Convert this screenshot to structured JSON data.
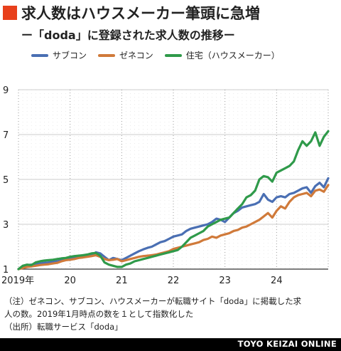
{
  "header": {
    "title": "求人数はハウスメーカー筆頭に急増",
    "subtitle": "ー「doda」に登録された求人数の推移ー"
  },
  "colors": {
    "accent": "#e8401c",
    "subcon": "#4a6fb3",
    "genecon": "#d07a3a",
    "housing": "#2f9a4a",
    "grid": "#cccccc"
  },
  "notes": {
    "line1": "（注）ゼネコン、サブコン、ハウスメーカーが転職サイト「doda」に掲載した求",
    "line2": "人の数。2019年1月時点の数を１として指数化した",
    "line3": "（出所）転職サービス「doda」"
  },
  "footer": {
    "brand": "TOYO KEIZAI ONLINE"
  },
  "chart_data": {
    "type": "line",
    "x_start": "2019-01",
    "x_tick_labels": [
      "2019年",
      "20",
      "21",
      "22",
      "23",
      "24"
    ],
    "y_ticks": [
      "1",
      "3",
      "5",
      "7",
      "9"
    ],
    "ylim": [
      1,
      9
    ],
    "legend_position": "top",
    "grid": "horizontal",
    "series": [
      {
        "name": "サブコン",
        "color": "#4a6fb3",
        "values": [
          1.0,
          1.1,
          1.18,
          1.2,
          1.22,
          1.25,
          1.28,
          1.3,
          1.33,
          1.35,
          1.4,
          1.45,
          1.48,
          1.5,
          1.52,
          1.55,
          1.58,
          1.62,
          1.75,
          1.7,
          1.55,
          1.4,
          1.5,
          1.45,
          1.4,
          1.5,
          1.6,
          1.7,
          1.8,
          1.88,
          1.95,
          2.0,
          2.1,
          2.2,
          2.25,
          2.35,
          2.45,
          2.5,
          2.55,
          2.7,
          2.8,
          2.85,
          2.9,
          2.95,
          3.0,
          3.1,
          3.25,
          3.2,
          3.1,
          3.3,
          3.5,
          3.6,
          3.75,
          3.8,
          3.85,
          3.9,
          4.0,
          4.35,
          4.1,
          4.0,
          4.2,
          4.25,
          4.2,
          4.35,
          4.4,
          4.5,
          4.6,
          4.65,
          4.4,
          4.7,
          4.85,
          4.65,
          5.05
        ]
      },
      {
        "name": "ゼネコン",
        "color": "#d07a3a",
        "values": [
          1.0,
          1.05,
          1.1,
          1.12,
          1.15,
          1.18,
          1.2,
          1.22,
          1.25,
          1.28,
          1.35,
          1.4,
          1.42,
          1.45,
          1.5,
          1.52,
          1.55,
          1.58,
          1.62,
          1.55,
          1.45,
          1.4,
          1.42,
          1.45,
          1.35,
          1.4,
          1.45,
          1.5,
          1.55,
          1.58,
          1.6,
          1.62,
          1.65,
          1.7,
          1.75,
          1.8,
          1.9,
          1.95,
          2.0,
          2.05,
          2.1,
          2.15,
          2.2,
          2.3,
          2.35,
          2.45,
          2.4,
          2.5,
          2.55,
          2.6,
          2.7,
          2.75,
          2.85,
          2.9,
          3.0,
          3.1,
          3.2,
          3.35,
          3.5,
          3.3,
          3.6,
          3.8,
          3.7,
          4.0,
          4.2,
          4.3,
          4.35,
          4.4,
          4.25,
          4.5,
          4.55,
          4.45,
          4.75
        ]
      },
      {
        "name": "住宅（ハウスメーカー）",
        "color": "#2f9a4a",
        "values": [
          1.0,
          1.15,
          1.2,
          1.18,
          1.3,
          1.35,
          1.38,
          1.4,
          1.42,
          1.45,
          1.48,
          1.5,
          1.55,
          1.58,
          1.6,
          1.62,
          1.65,
          1.7,
          1.72,
          1.6,
          1.3,
          1.2,
          1.15,
          1.1,
          1.1,
          1.2,
          1.25,
          1.35,
          1.4,
          1.45,
          1.5,
          1.55,
          1.6,
          1.65,
          1.7,
          1.75,
          1.8,
          1.85,
          2.0,
          2.2,
          2.4,
          2.5,
          2.6,
          2.7,
          2.9,
          3.0,
          3.1,
          3.2,
          3.25,
          3.3,
          3.5,
          3.7,
          3.9,
          4.2,
          4.3,
          4.5,
          5.0,
          5.15,
          5.1,
          4.9,
          5.3,
          5.4,
          5.5,
          5.6,
          5.8,
          6.3,
          6.7,
          6.5,
          6.7,
          7.1,
          6.5,
          6.9,
          7.15
        ]
      }
    ]
  }
}
